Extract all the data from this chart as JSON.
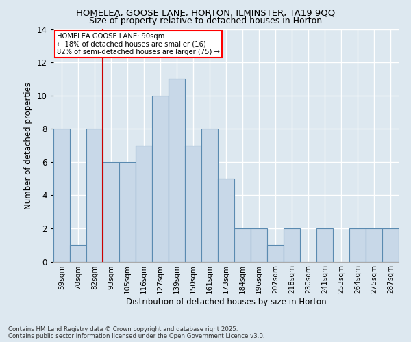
{
  "title1": "HOMELEA, GOOSE LANE, HORTON, ILMINSTER, TA19 9QQ",
  "title2": "Size of property relative to detached houses in Horton",
  "xlabel": "Distribution of detached houses by size in Horton",
  "ylabel": "Number of detached properties",
  "bin_labels": [
    "59sqm",
    "70sqm",
    "82sqm",
    "93sqm",
    "105sqm",
    "116sqm",
    "127sqm",
    "139sqm",
    "150sqm",
    "161sqm",
    "173sqm",
    "184sqm",
    "196sqm",
    "207sqm",
    "218sqm",
    "230sqm",
    "241sqm",
    "253sqm",
    "264sqm",
    "275sqm",
    "287sqm"
  ],
  "values": [
    8,
    1,
    8,
    6,
    6,
    7,
    10,
    11,
    7,
    8,
    5,
    2,
    2,
    1,
    2,
    0,
    2,
    0,
    2,
    2,
    2
  ],
  "bar_color": "#c8d8e8",
  "bar_edge_color": "#5a8ab0",
  "vline_x_idx": 2,
  "vline_color": "#cc0000",
  "annotation_text": "HOMELEA GOOSE LANE: 90sqm\n← 18% of detached houses are smaller (16)\n82% of semi-detached houses are larger (75) →",
  "ylim": [
    0,
    14
  ],
  "yticks": [
    0,
    2,
    4,
    6,
    8,
    10,
    12,
    14
  ],
  "footer_text": "Contains HM Land Registry data © Crown copyright and database right 2025.\nContains public sector information licensed under the Open Government Licence v3.0.",
  "bg_color": "#dde8f0",
  "grid_color": "#ffffff"
}
